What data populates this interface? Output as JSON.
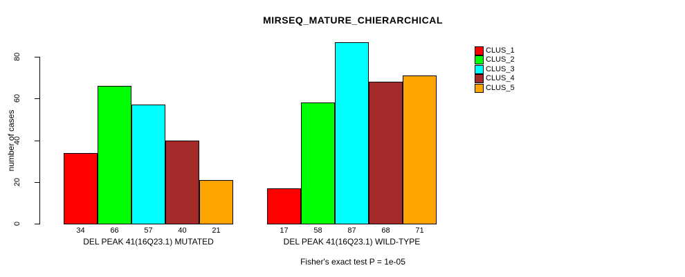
{
  "chart_data": {
    "type": "bar",
    "title": "MIRSEQ_MATURE_CHIERARCHICAL",
    "ylabel": "number of cases",
    "xlabel": "",
    "ylim": [
      0,
      80
    ],
    "yticks": [
      0,
      20,
      40,
      60,
      80
    ],
    "grid": false,
    "legend_position": "right",
    "bar_value_labels": true,
    "categories": [
      "DEL PEAK 41(16Q23.1) MUTATED",
      "DEL PEAK 41(16Q23.1) WILD-TYPE"
    ],
    "groups": [
      {
        "label": "DEL PEAK 41(16Q23.1) MUTATED",
        "values": [
          34,
          66,
          57,
          40,
          21
        ]
      },
      {
        "label": "DEL PEAK 41(16Q23.1) WILD-TYPE",
        "values": [
          17,
          58,
          87,
          68,
          71
        ]
      }
    ],
    "series": [
      {
        "name": "CLUS_1",
        "color": "#FF0000"
      },
      {
        "name": "CLUS_2",
        "color": "#00FF00"
      },
      {
        "name": "CLUS_3",
        "color": "#00FFFF"
      },
      {
        "name": "CLUS_4",
        "color": "#A52A2A"
      },
      {
        "name": "CLUS_5",
        "color": "#FFA500"
      }
    ],
    "annotation": "Fisher's exact test P = 1e-05"
  }
}
